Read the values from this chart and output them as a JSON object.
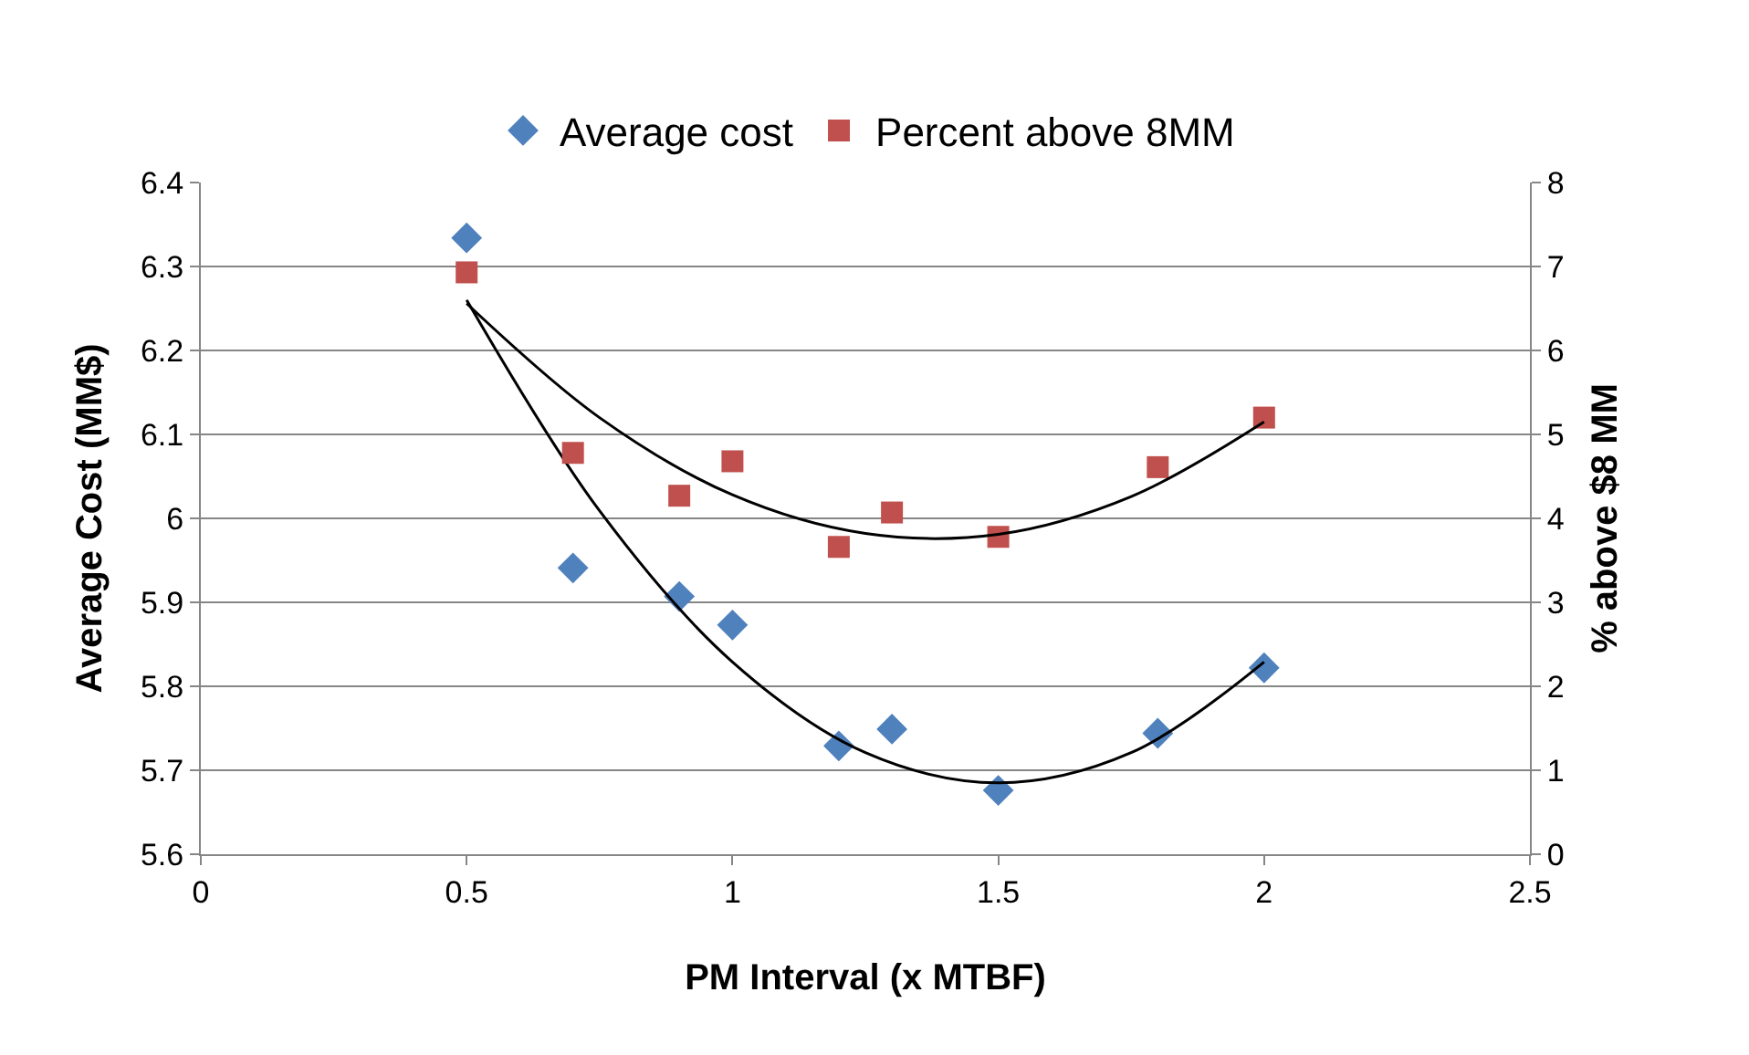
{
  "chart_data": {
    "type": "scatter",
    "xlabel": "PM Interval (x MTBF)",
    "ylabel": "Average Cost (MM$)",
    "y2label": "% above $8 MM",
    "xlim": [
      0,
      2.5
    ],
    "xticks": [
      0,
      0.5,
      1,
      1.5,
      2,
      2.5
    ],
    "ylim": [
      5.6,
      6.4
    ],
    "yticks": [
      5.6,
      5.7,
      5.8,
      5.9,
      {
        "value": 6,
        "label": "6"
      },
      6.1,
      6.2,
      6.3,
      6.4
    ],
    "y2lim": [
      0,
      8
    ],
    "y2ticks": [
      0,
      1,
      2,
      3,
      4,
      5,
      6,
      7,
      8
    ],
    "grid": "y",
    "legend": "top",
    "series": [
      {
        "name": "Average cost",
        "color": "#4f81bd",
        "marker": "diamond",
        "x": [
          0.5,
          0.7,
          0.9,
          1.0,
          1.2,
          1.3,
          1.5,
          1.8,
          2.0
        ],
        "values": [
          6.334,
          5.941,
          5.907,
          5.873,
          5.729,
          5.749,
          5.676,
          5.744,
          5.822
        ]
      },
      {
        "name": "Percent above 8MM",
        "color": "#c0504d",
        "marker": "square",
        "axis": "y2",
        "x": [
          0.5,
          0.7,
          0.9,
          1.0,
          1.2,
          1.3,
          1.5,
          1.8,
          2.0
        ],
        "values": [
          6.93,
          4.78,
          4.27,
          4.68,
          3.66,
          4.07,
          3.78,
          4.61,
          5.2
        ]
      },
      {
        "type": "line",
        "color": "#000000",
        "marker": "none",
        "x": [
          0.5,
          0.75,
          1.0,
          1.25,
          1.5,
          1.75,
          2.0
        ],
        "values": [
          6.26,
          6.009,
          5.829,
          5.721,
          5.685,
          5.721,
          5.829
        ]
      },
      {
        "type": "line",
        "color": "#000000",
        "marker": "none",
        "axis": "y2",
        "x": [
          0.5,
          0.75,
          1.0,
          1.25,
          1.5,
          1.75,
          2.0
        ],
        "values": [
          6.56,
          5.2,
          4.28,
          3.82,
          3.81,
          4.26,
          5.15
        ]
      }
    ]
  }
}
